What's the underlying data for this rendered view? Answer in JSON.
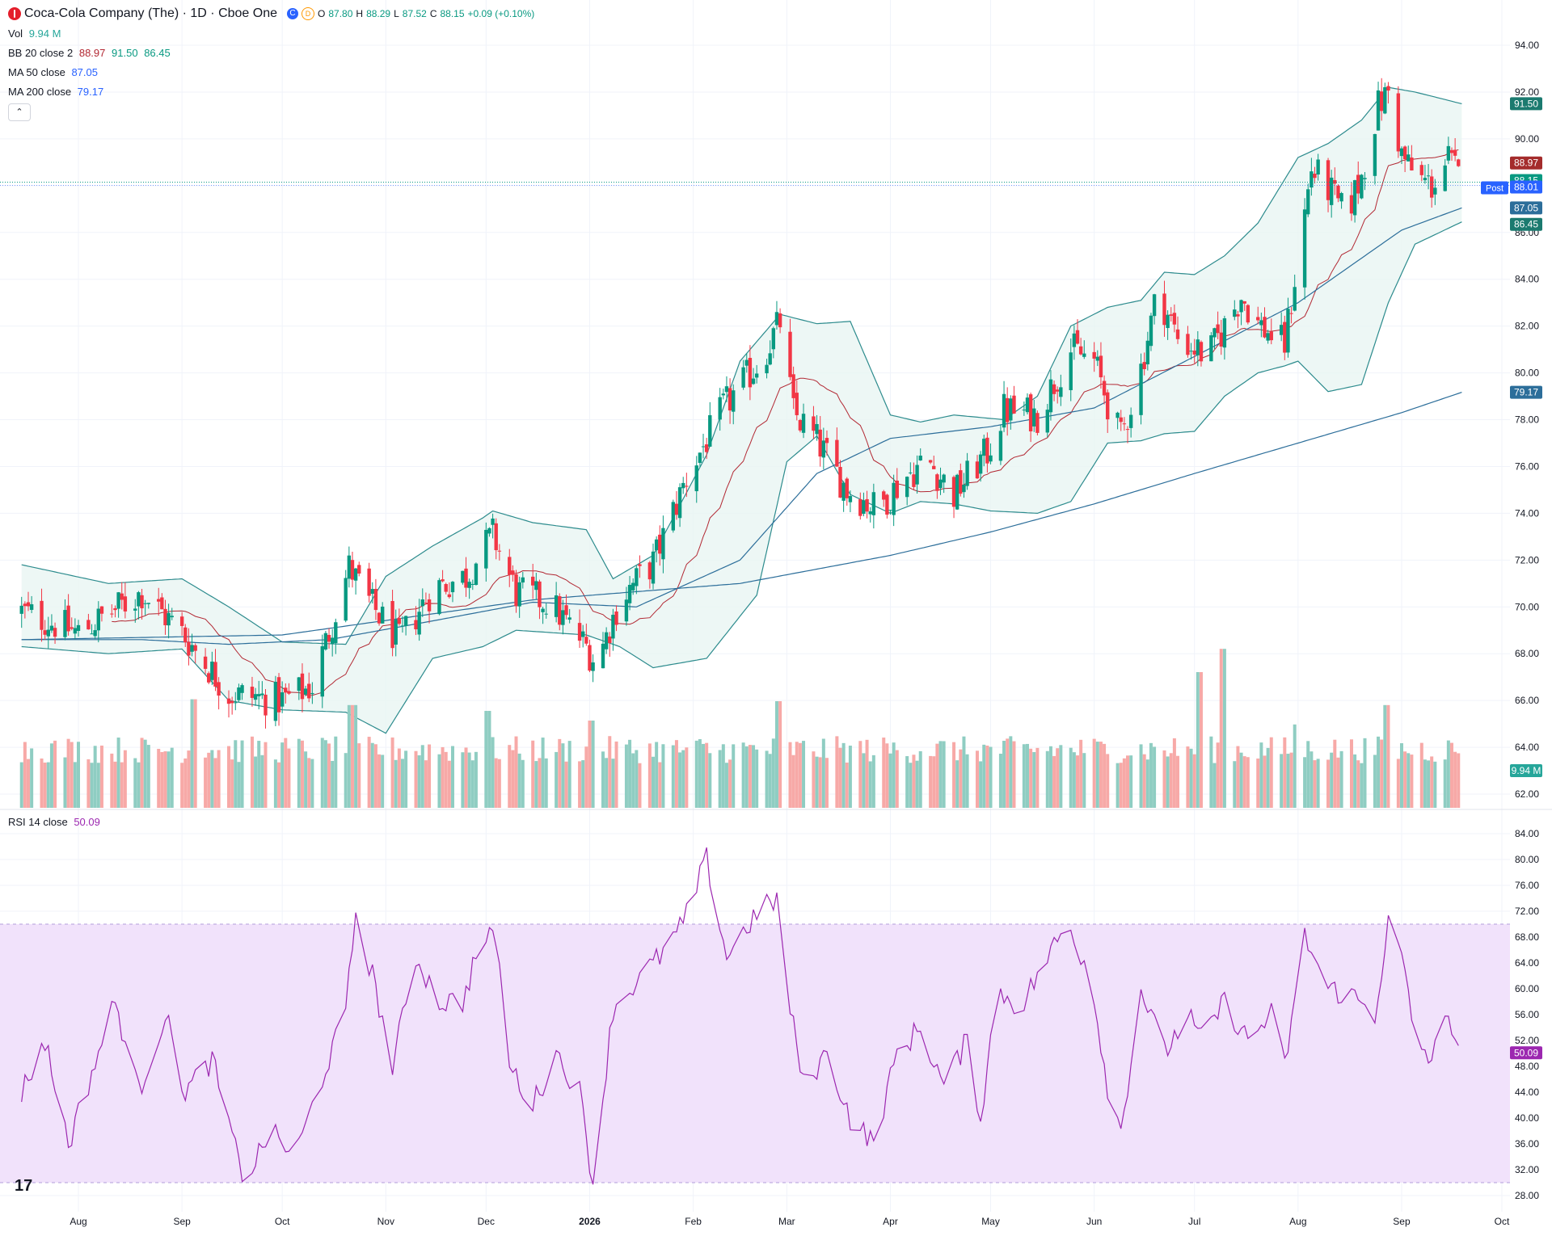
{
  "header": {
    "symbol_title": "Coca-Cola Company (The) · 1D · Cboe One",
    "market_icon": "C",
    "delay_icon": "D",
    "ohlc": [
      {
        "label": "O",
        "value": "87.80"
      },
      {
        "label": "H",
        "value": "88.29"
      },
      {
        "label": "L",
        "value": "87.52"
      },
      {
        "label": "C",
        "value": "88.15"
      },
      {
        "label": "",
        "value": "+0.09 (+0.10%)"
      }
    ]
  },
  "legends": {
    "vol": {
      "name": "Vol",
      "values": [
        "9.94 M"
      ],
      "colors": [
        "#26a69a"
      ]
    },
    "bb": {
      "name": "BB 20 close 2",
      "values": [
        "88.97",
        "91.50",
        "86.45"
      ],
      "colors": [
        "#b22833",
        "#089981",
        "#089981"
      ]
    },
    "ma50": {
      "name": "MA 50 close",
      "values": [
        "87.05"
      ],
      "colors": [
        "#2962ff"
      ]
    },
    "ma200": {
      "name": "MA 200 close",
      "values": [
        "79.17"
      ],
      "colors": [
        "#2962ff"
      ]
    },
    "rsi": {
      "name": "RSI 14 close",
      "values": [
        "50.09"
      ],
      "colors": [
        "#7e57c2"
      ]
    }
  },
  "collapse_icon": "chevron-up-icon",
  "collapse_glyph": "⌃",
  "tv_logo_glyph": "17",
  "colors": {
    "up": "#089981",
    "down": "#f23645",
    "up_vol": "#8fcdc2",
    "down_vol": "#f7a9a7",
    "bb_basis": "#b22833",
    "bb_band": "#2c8b8d",
    "bb_fill": "#e8f5f3",
    "ma": "#2c6e9a",
    "rsi": "#9c27b0",
    "rsi_fill": "#f1e2fb",
    "grid": "#f0f3fa"
  },
  "chart_data": [
    {
      "type": "candlestick",
      "title": "Coca-Cola Company (The) · 1D · Cboe One",
      "y_ticks": [
        "62.00",
        "64.00",
        "66.00",
        "68.00",
        "70.00",
        "72.00",
        "74.00",
        "76.00",
        "78.00",
        "80.00",
        "82.00",
        "84.00",
        "86.00",
        "88.00",
        "90.00",
        "92.00",
        "94.00"
      ],
      "ylim": [
        61.5,
        94.6
      ],
      "x_ticks": [
        "Aug",
        "Sep",
        "Oct",
        "Nov",
        "Dec",
        "2026",
        "Feb",
        "Mar",
        "Apr",
        "May",
        "Jun",
        "Jul",
        "Aug",
        "Sep",
        "Oct"
      ],
      "trend": [
        [
          "Jul 15",
          69.8
        ],
        [
          "Aug 1",
          68.9
        ],
        [
          "Aug 20",
          70.6
        ],
        [
          "Sep 1",
          68.9
        ],
        [
          "Sep 15",
          66.3
        ],
        [
          "Oct 1",
          66.0
        ],
        [
          "Oct 10",
          66.6
        ],
        [
          "Oct 21",
          71.7
        ],
        [
          "Oct 27",
          70.2
        ],
        [
          "Nov 5",
          68.5
        ],
        [
          "Nov 15",
          70.8
        ],
        [
          "Nov 25",
          71.3
        ],
        [
          "Dec 3",
          73.1
        ],
        [
          "Dec 10",
          70.6
        ],
        [
          "Dec 20",
          70.2
        ],
        [
          "Dec 31",
          68.3
        ],
        [
          "Jan 3",
          67.6
        ],
        [
          "Jan 10",
          70.3
        ],
        [
          "Jan 20",
          71.9
        ],
        [
          "Jan 30",
          75.5
        ],
        [
          "Feb 10",
          78.5
        ],
        [
          "Feb 22",
          80.7
        ],
        [
          "Feb 27",
          82.2
        ],
        [
          "Mar 3",
          78.3
        ],
        [
          "Mar 10",
          77.1
        ],
        [
          "Mar 19",
          75.0
        ],
        [
          "Mar 28",
          74.2
        ],
        [
          "Apr 5",
          75.5
        ],
        [
          "Apr 12",
          76.3
        ],
        [
          "Apr 20",
          74.8
        ],
        [
          "Apr 30",
          76.6
        ],
        [
          "May 5",
          78.4
        ],
        [
          "May 15",
          78.2
        ],
        [
          "May 25",
          81.0
        ],
        [
          "Jun 1",
          80.5
        ],
        [
          "Jun 6",
          78.3
        ],
        [
          "Jun 9",
          77.2
        ],
        [
          "Jun 15",
          80.2
        ],
        [
          "Jun 20",
          83.5
        ],
        [
          "Jun 26",
          81.5
        ],
        [
          "Jul 5",
          80.7
        ],
        [
          "Jul 10",
          82.0
        ],
        [
          "Jul 15",
          83.3
        ],
        [
          "Jul 20",
          82.1
        ],
        [
          "Jul 25",
          81.5
        ],
        [
          "Jul 28",
          81.2
        ],
        [
          "Jul 31",
          84.0
        ],
        [
          "Aug 5",
          88.7
        ],
        [
          "Aug 10",
          87.9
        ],
        [
          "Aug 15",
          86.7
        ],
        [
          "Aug 20",
          88.4
        ],
        [
          "Aug 25",
          91.4
        ],
        [
          "Aug 28",
          92.0
        ],
        [
          "Sep 1",
          89.3
        ],
        [
          "Sep 5",
          88.4
        ],
        [
          "Sep 10",
          88.0
        ],
        [
          "Sep 15",
          89.1
        ],
        [
          "Sep 19",
          88.15
        ]
      ],
      "bb_upper": [
        [
          "Jul 15",
          71.8
        ],
        [
          "Aug 10",
          71.0
        ],
        [
          "Sep 1",
          71.2
        ],
        [
          "Sep 15",
          70.0
        ],
        [
          "Oct 1",
          68.5
        ],
        [
          "Oct 20",
          68.4
        ],
        [
          "Nov 1",
          71.3
        ],
        [
          "Nov 15",
          72.6
        ],
        [
          "Nov 30",
          73.8
        ],
        [
          "Dec 3",
          74.1
        ],
        [
          "Dec 15",
          73.6
        ],
        [
          "Dec 31",
          73.3
        ],
        [
          "Jan 8",
          71.2
        ],
        [
          "Jan 20",
          72.2
        ],
        [
          "Feb 5",
          76.5
        ],
        [
          "Feb 15",
          80.5
        ],
        [
          "Feb 27",
          82.5
        ],
        [
          "Mar 10",
          82.1
        ],
        [
          "Mar 20",
          82.2
        ],
        [
          "Apr 1",
          78.2
        ],
        [
          "Apr 10",
          77.9
        ],
        [
          "Apr 20",
          78.2
        ],
        [
          "May 5",
          78.0
        ],
        [
          "May 15",
          79.0
        ],
        [
          "May 25",
          82.0
        ],
        [
          "Jun 5",
          82.8
        ],
        [
          "Jun 15",
          83.1
        ],
        [
          "Jun 22",
          84.3
        ],
        [
          "Jul 1",
          84.2
        ],
        [
          "Jul 10",
          85.0
        ],
        [
          "Jul 20",
          86.4
        ],
        [
          "Aug 1",
          89.2
        ],
        [
          "Aug 10",
          89.8
        ],
        [
          "Aug 20",
          90.8
        ],
        [
          "Aug 28",
          92.2
        ],
        [
          "Sep 5",
          92.0
        ],
        [
          "Sep 19",
          91.5
        ]
      ],
      "bb_lower": [
        [
          "Jul 15",
          68.3
        ],
        [
          "Aug 10",
          68.0
        ],
        [
          "Sep 1",
          68.2
        ],
        [
          "Sep 15",
          66.0
        ],
        [
          "Oct 1",
          65.6
        ],
        [
          "Oct 20",
          65.5
        ],
        [
          "Nov 1",
          64.6
        ],
        [
          "Nov 15",
          67.8
        ],
        [
          "Nov 30",
          68.3
        ],
        [
          "Dec 10",
          69.0
        ],
        [
          "Dec 31",
          68.8
        ],
        [
          "Jan 10",
          68.3
        ],
        [
          "Jan 20",
          67.4
        ],
        [
          "Feb 5",
          67.8
        ],
        [
          "Feb 20",
          70.5
        ],
        [
          "Mar 1",
          76.2
        ],
        [
          "Mar 10",
          77.3
        ],
        [
          "Mar 20",
          74.8
        ],
        [
          "Apr 1",
          74.0
        ],
        [
          "Apr 10",
          74.5
        ],
        [
          "Apr 20",
          74.4
        ],
        [
          "May 1",
          74.1
        ],
        [
          "May 15",
          74.0
        ],
        [
          "May 25",
          74.5
        ],
        [
          "Jun 5",
          77.0
        ],
        [
          "Jun 15",
          77.1
        ],
        [
          "Jun 22",
          77.4
        ],
        [
          "Jul 1",
          77.5
        ],
        [
          "Jul 10",
          79.0
        ],
        [
          "Jul 20",
          80.0
        ],
        [
          "Jul 28",
          80.3
        ],
        [
          "Aug 1",
          80.5
        ],
        [
          "Aug 10",
          79.2
        ],
        [
          "Aug 20",
          79.5
        ],
        [
          "Aug 28",
          83.0
        ],
        [
          "Sep 5",
          85.5
        ],
        [
          "Sep 19",
          86.45
        ]
      ],
      "ma50": [
        [
          "Jul 15",
          68.6
        ],
        [
          "Aug 20",
          68.6
        ],
        [
          "Sep 15",
          68.4
        ],
        [
          "Oct 15",
          68.6
        ],
        [
          "Nov 15",
          69.4
        ],
        [
          "Dec 15",
          70.2
        ],
        [
          "Jan 15",
          70.0
        ],
        [
          "Feb 15",
          72.0
        ],
        [
          "Mar 10",
          75.7
        ],
        [
          "Apr 1",
          77.2
        ],
        [
          "May 1",
          77.7
        ],
        [
          "Jun 1",
          78.5
        ],
        [
          "Jul 1",
          80.7
        ],
        [
          "Aug 1",
          83.0
        ],
        [
          "Sep 1",
          86.1
        ],
        [
          "Sep 19",
          87.05
        ]
      ],
      "ma200": [
        [
          "Jul 15",
          68.6
        ],
        [
          "Oct 1",
          68.8
        ],
        [
          "Dec 15",
          70.3
        ],
        [
          "Feb 15",
          71.0
        ],
        [
          "Apr 1",
          72.2
        ],
        [
          "May 1",
          73.2
        ],
        [
          "Jun 1",
          74.4
        ],
        [
          "Jul 1",
          75.7
        ],
        [
          "Aug 1",
          77.0
        ],
        [
          "Sep 1",
          78.3
        ],
        [
          "Sep 19",
          79.17
        ]
      ],
      "price_tags": [
        {
          "label": "91.50",
          "value": 91.5,
          "color": "#1b7a6f"
        },
        {
          "label": "88.97",
          "value": 88.97,
          "color": "#a42c2c"
        },
        {
          "label": "88.15",
          "value": 88.15,
          "color": "#089981"
        },
        {
          "label": "88.01",
          "value": 88.01,
          "color": "#2962ff"
        },
        {
          "label": "87.05",
          "value": 87.05,
          "color": "#2c6e9a"
        },
        {
          "label": "86.45",
          "value": 86.45,
          "color": "#1b7a6f"
        },
        {
          "label": "79.17",
          "value": 79.17,
          "color": "#2c6e9a"
        }
      ],
      "post_label": "Post"
    },
    {
      "type": "bar",
      "title": "Vol",
      "last_value": "9.94 M",
      "peaks": [
        [
          "Sep 5",
          5.6
        ],
        [
          "Oct 22",
          5.3
        ],
        [
          "Dec 1",
          5.0
        ],
        [
          "Jan 2",
          4.5
        ],
        [
          "Feb 27",
          5.5
        ],
        [
          "Jul 3",
          7.0
        ],
        [
          "Jul 10",
          8.2
        ],
        [
          "Aug 1",
          4.3
        ],
        [
          "Aug 28",
          5.3
        ]
      ]
    },
    {
      "type": "line",
      "title": "RSI 14 close",
      "y_ticks": [
        "28.00",
        "32.00",
        "36.00",
        "40.00",
        "44.00",
        "48.00",
        "52.00",
        "56.00",
        "60.00",
        "64.00",
        "68.00",
        "72.00",
        "76.00",
        "80.00",
        "84.00"
      ],
      "ylim": [
        27,
        86
      ],
      "band": [
        30,
        70
      ],
      "last_value": "50.09",
      "values": [
        [
          "Jul 15",
          44.0
        ],
        [
          "Jul 22",
          52.0
        ],
        [
          "Jul 29",
          36.0
        ],
        [
          "Aug 5",
          47.0
        ],
        [
          "Aug 12",
          58.0
        ],
        [
          "Aug 19",
          44.0
        ],
        [
          "Aug 27",
          56.0
        ],
        [
          "Sep 2",
          44.0
        ],
        [
          "Sep 10",
          49.0
        ],
        [
          "Sep 17",
          35.0
        ],
        [
          "Sep 20",
          30.0
        ],
        [
          "Sep 27",
          38.0
        ],
        [
          "Oct 5",
          34.0
        ],
        [
          "Oct 12",
          45.0
        ],
        [
          "Oct 20",
          56.0
        ],
        [
          "Oct 23",
          72.0
        ],
        [
          "Oct 28",
          62.0
        ],
        [
          "Nov 3",
          48.0
        ],
        [
          "Nov 10",
          65.0
        ],
        [
          "Nov 17",
          58.0
        ],
        [
          "Nov 24",
          58.0
        ],
        [
          "Nov 29",
          67.0
        ],
        [
          "Dec 4",
          68.0
        ],
        [
          "Dec 8",
          48.0
        ],
        [
          "Dec 15",
          42.0
        ],
        [
          "Dec 22",
          50.0
        ],
        [
          "Dec 29",
          44.0
        ],
        [
          "Jan 2",
          30.0
        ],
        [
          "Jan 8",
          57.0
        ],
        [
          "Jan 15",
          61.0
        ],
        [
          "Jan 22",
          65.0
        ],
        [
          "Jan 29",
          70.0
        ],
        [
          "Feb 5",
          80.0
        ],
        [
          "Feb 11",
          65.0
        ],
        [
          "Feb 19",
          71.0
        ],
        [
          "Feb 26",
          74.0
        ],
        [
          "Mar 1",
          60.0
        ],
        [
          "Mar 6",
          45.0
        ],
        [
          "Mar 13",
          50.0
        ],
        [
          "Mar 20",
          40.0
        ],
        [
          "Mar 27",
          36.0
        ],
        [
          "Apr 3",
          50.0
        ],
        [
          "Apr 10",
          54.0
        ],
        [
          "Apr 17",
          45.0
        ],
        [
          "Apr 24",
          52.0
        ],
        [
          "Apr 28",
          40.0
        ],
        [
          "May 3",
          60.0
        ],
        [
          "May 10",
          57.0
        ],
        [
          "May 17",
          64.0
        ],
        [
          "May 24",
          70.0
        ],
        [
          "May 31",
          62.0
        ],
        [
          "Jun 5",
          45.0
        ],
        [
          "Jun 9",
          38.0
        ],
        [
          "Jun 15",
          60.0
        ],
        [
          "Jun 22",
          50.0
        ],
        [
          "Jun 29",
          56.0
        ],
        [
          "Jul 3",
          52.0
        ],
        [
          "Jul 10",
          58.0
        ],
        [
          "Jul 17",
          52.0
        ],
        [
          "Jul 24",
          56.0
        ],
        [
          "Jul 28",
          48.0
        ],
        [
          "Aug 3",
          68.0
        ],
        [
          "Aug 10",
          60.0
        ],
        [
          "Aug 17",
          59.0
        ],
        [
          "Aug 24",
          56.0
        ],
        [
          "Aug 28",
          70.0
        ],
        [
          "Sep 1",
          65.0
        ],
        [
          "Sep 5",
          52.0
        ],
        [
          "Sep 10",
          49.0
        ],
        [
          "Sep 15",
          56.0
        ],
        [
          "Sep 19",
          50.09
        ]
      ]
    }
  ]
}
